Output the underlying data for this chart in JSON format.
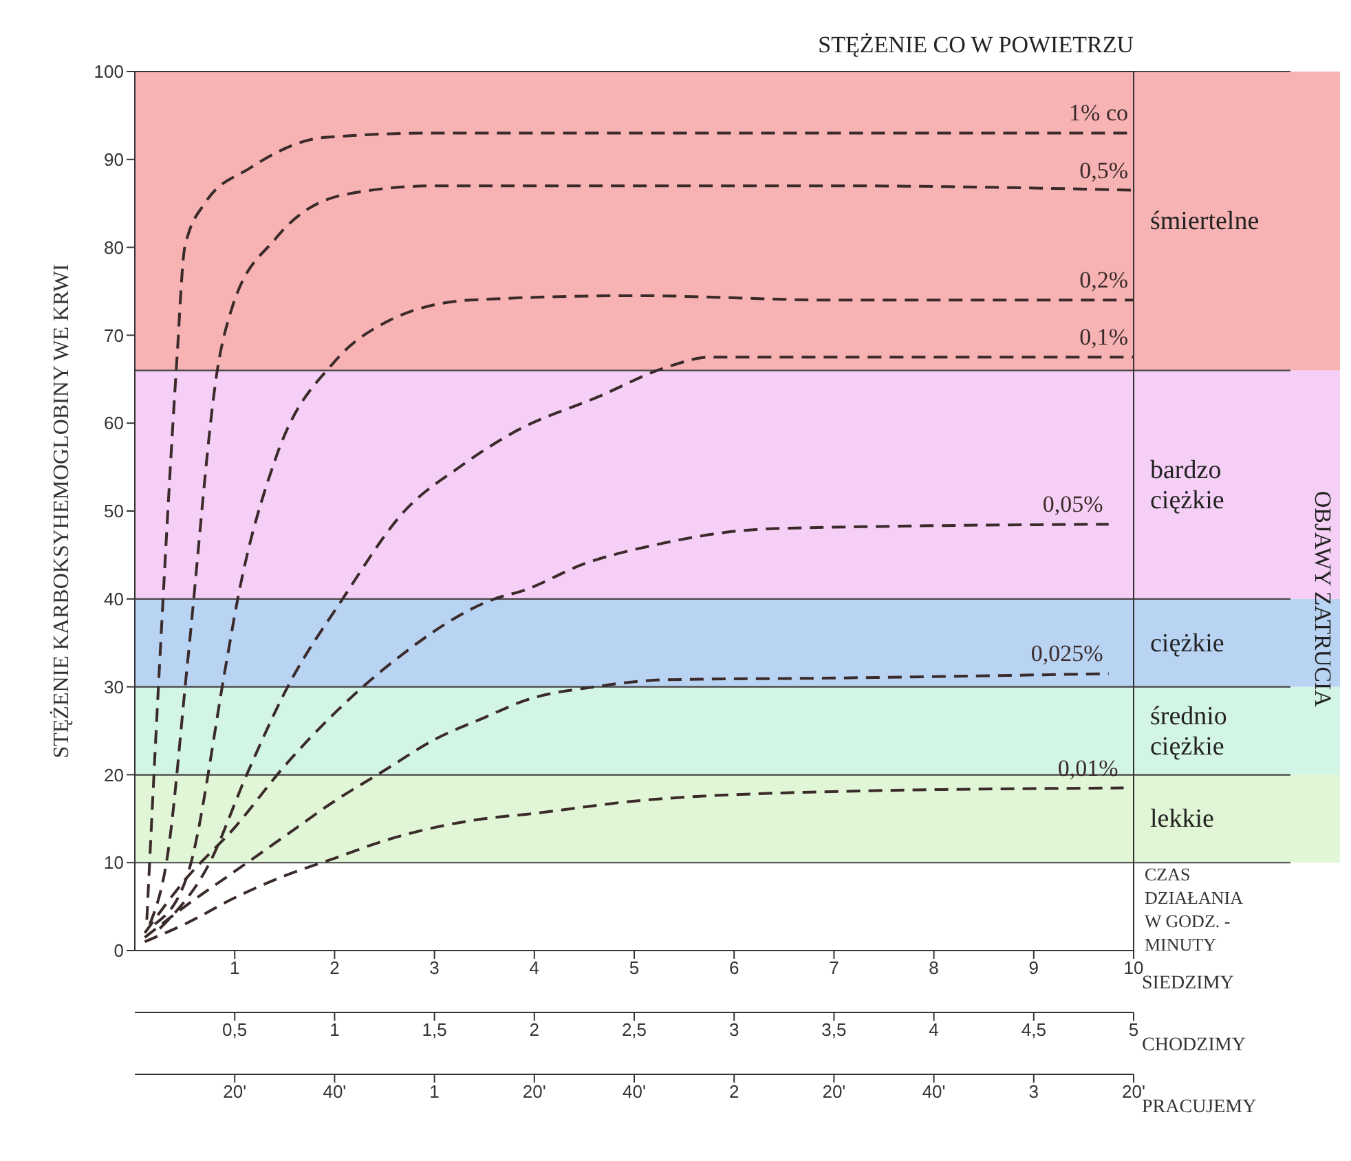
{
  "chart_data": {
    "type": "line",
    "title": "STĘŻENIE CO W POWIETRZU",
    "ylabel": "STĘŻENIE KARBOKSYHEMOGLOBINY WE KRWI",
    "xlabel": "SIEDZIMY",
    "x2label": "CHODZIMY",
    "annotations": [
      "PRACUJEMY",
      "CZAS DZIAŁANIA W GODZ. - MINUTY",
      "OBJAWY ZATRUCIA",
      "20'",
      "40'",
      "1",
      "20'",
      "40'",
      "2",
      "20'",
      "40'",
      "3",
      "20'"
    ],
    "xlim": [
      0,
      10
    ],
    "xticks": [
      1,
      2,
      3,
      4,
      5,
      6,
      7,
      8,
      9,
      10
    ],
    "x2lim": [
      0,
      5
    ],
    "x2ticks": [
      {
        "value": 0.5,
        "label": "0,5"
      },
      1,
      {
        "value": 1.5,
        "label": "1,5"
      },
      2,
      {
        "value": 2.5,
        "label": "2,5"
      },
      3,
      {
        "value": 3.5,
        "label": "3,5"
      },
      4,
      {
        "value": 4.5,
        "label": "4,5"
      },
      5
    ],
    "ylim": [
      0,
      100
    ],
    "yticks": [
      0,
      10,
      20,
      30,
      40,
      50,
      60,
      70,
      80,
      90,
      100
    ],
    "line_style": "dashed",
    "marker": "none",
    "bands": [
      {
        "axis": "y",
        "from": 10,
        "to": 20,
        "label": "lekkie",
        "color": "#e1f6d6"
      },
      {
        "axis": "y",
        "from": 20,
        "to": 30,
        "label": "średnio ciężkie",
        "color": "#d3f5e6"
      },
      {
        "axis": "y",
        "from": 30,
        "to": 40,
        "label": "ciężkie",
        "color": "#b9d3f3"
      },
      {
        "axis": "y",
        "from": 40,
        "to": 66,
        "label": "bardzo ciężkie",
        "color": "#f5cff5"
      },
      {
        "axis": "y",
        "from": 66,
        "to": 100,
        "label": "śmiertelne",
        "color": "#f7b3b3"
      }
    ],
    "series": [
      {
        "name": "1% co",
        "color": "#3a2a2a",
        "x": [
          0.12,
          0.25,
          0.42,
          0.5,
          0.7,
          1.15,
          1.9,
          3,
          5,
          7,
          10
        ],
        "values": [
          3.5,
          33,
          67,
          80,
          85,
          89,
          92.5,
          93,
          93,
          93,
          93
        ]
      },
      {
        "name": "0,5%",
        "color": "#3a2a2a",
        "x": [
          0.15,
          0.33,
          0.53,
          0.84,
          0.97,
          1.41,
          2.1,
          3,
          5,
          7,
          10
        ],
        "values": [
          3,
          11,
          33,
          67,
          73,
          81,
          86,
          87,
          87,
          87,
          86.5
        ]
      },
      {
        "name": "0,2%",
        "color": "#3a2a2a",
        "x": [
          0.2,
          0.53,
          0.92,
          1.03,
          1.41,
          2,
          2.5,
          3.36,
          5,
          7,
          10
        ],
        "values": [
          3,
          8.7,
          33,
          40,
          56,
          67,
          71.4,
          74,
          74.5,
          74,
          74
        ]
      },
      {
        "name": "0,1%",
        "color": "#3a2a2a",
        "x": [
          0.25,
          0.75,
          1.12,
          1.53,
          2.08,
          2.7,
          3.25,
          3.8,
          4.64,
          5.36,
          5.75,
          7,
          10
        ],
        "values": [
          2.5,
          10,
          20,
          30,
          40,
          50,
          55,
          59,
          63,
          66.5,
          67.5,
          67.5,
          67.5
        ]
      },
      {
        "name": "0,05%",
        "color": "#3a2a2a",
        "x": [
          0.1,
          0.5,
          1,
          1.5,
          2,
          2.6,
          3.6,
          3.9,
          4.5,
          5.15,
          6.4,
          9.75
        ],
        "values": [
          2,
          8,
          14,
          21,
          27,
          33,
          40,
          41,
          44,
          46,
          48,
          48.5
        ]
      },
      {
        "name": "0,025%",
        "color": "#3a2a2a",
        "x": [
          0.1,
          0.5,
          1,
          1.5,
          2,
          2.5,
          3,
          3.5,
          3.92,
          4.6,
          5.3,
          7,
          9.75
        ],
        "values": [
          1.5,
          5,
          9,
          13,
          17,
          20.5,
          24,
          26.5,
          28.5,
          30,
          30.8,
          31,
          31.5
        ]
      },
      {
        "name": "0,01%",
        "color": "#3a2a2a",
        "x": [
          0.1,
          0.5,
          1,
          1.5,
          2,
          2.5,
          3,
          3.5,
          3.92,
          5,
          6.7,
          9.9
        ],
        "values": [
          1,
          3,
          6,
          8.5,
          10.5,
          12.5,
          14,
          15,
          15.5,
          17,
          18,
          18.5
        ]
      }
    ]
  }
}
